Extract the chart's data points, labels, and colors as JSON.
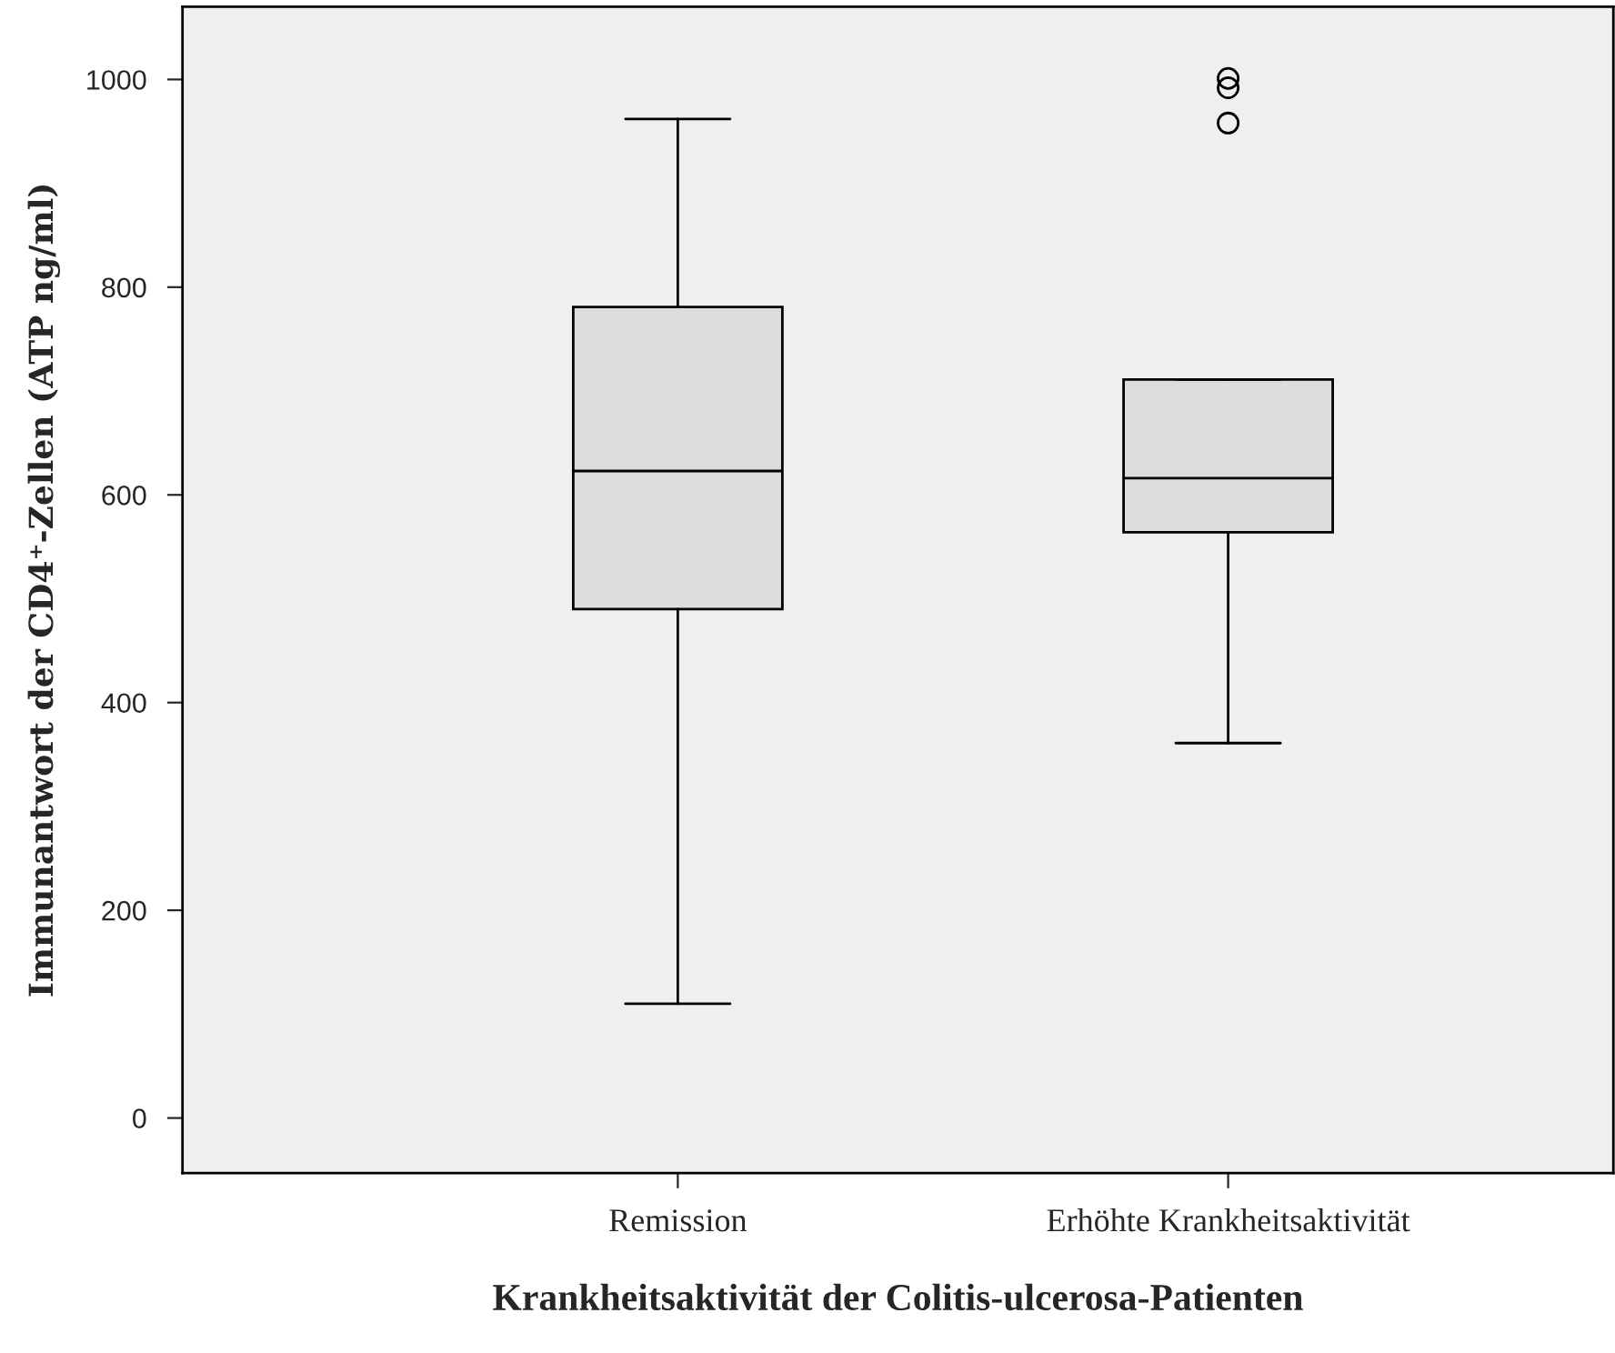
{
  "chart_data": {
    "type": "box",
    "xlabel": "Krankheitsaktivität der Colitis-ulcerosa-Patienten",
    "ylabel": "Immunantwort der CD4⁺-Zellen (ATP ng/ml)",
    "categories": [
      "Remission",
      "Erhöhte Krankheitsaktivität"
    ],
    "boxes": [
      {
        "low": 110,
        "q1": 490,
        "median": 623,
        "q3": 781,
        "high": 962
      },
      {
        "low": 361,
        "q1": 564,
        "median": 616,
        "q3": 711,
        "high": 711,
        "outliers": [
          1001,
          992,
          958
        ]
      }
    ],
    "color": "#dcdcdc",
    "ylim": [
      -53,
      1070
    ],
    "yticks": [
      0,
      200,
      400,
      600,
      800,
      1000
    ],
    "grid": false
  }
}
